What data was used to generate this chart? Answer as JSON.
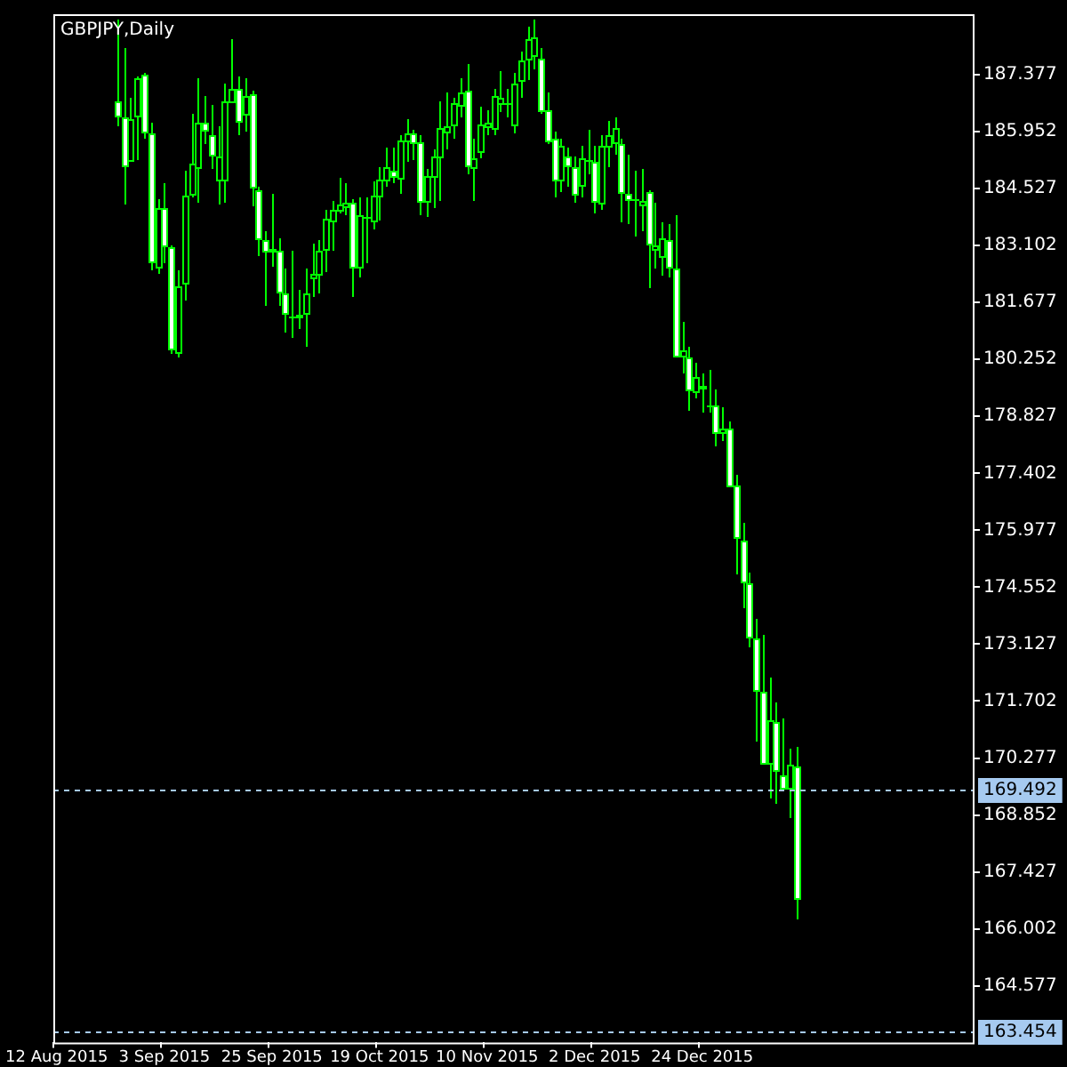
{
  "chart_data": {
    "type": "candlestick",
    "title": "GBPJPY,Daily",
    "color": "#00ff00",
    "categories": [
      "12 Aug 2015",
      null,
      null,
      null,
      null,
      null,
      null,
      null,
      null,
      null,
      null,
      null,
      null,
      null,
      null,
      null,
      "3 Sep 2015",
      null,
      null,
      null,
      null,
      null,
      null,
      null,
      null,
      null,
      null,
      null,
      null,
      null,
      null,
      null,
      "25 Sep 2015",
      null,
      null,
      null,
      null,
      null,
      null,
      null,
      null,
      null,
      null,
      null,
      null,
      null,
      null,
      null,
      "19 Oct 2015",
      null,
      null,
      null,
      null,
      null,
      null,
      null,
      null,
      null,
      null,
      null,
      null,
      null,
      null,
      null,
      "10 Nov 2015",
      null,
      null,
      null,
      null,
      null,
      null,
      null,
      null,
      null,
      null,
      null,
      null,
      null,
      null,
      null,
      "2 Dec 2015",
      null,
      null,
      null,
      null,
      null,
      null,
      null,
      null,
      null,
      null,
      null,
      null,
      null,
      null,
      null,
      "24 Dec 2015",
      null,
      null,
      null,
      null,
      null,
      null,
      null,
      null,
      null,
      null,
      null,
      null,
      null,
      null,
      null,
      null,
      null,
      null,
      null,
      null,
      null,
      null,
      null,
      null,
      null,
      null,
      null,
      null,
      null,
      null,
      null,
      null,
      null,
      null,
      null,
      null,
      null,
      null,
      null,
      null
    ],
    "ohlc": [
      null,
      null,
      null,
      null,
      null,
      null,
      null,
      null,
      null,
      [
        186.71,
        188.75,
        186.09,
        186.31
      ],
      [
        186.31,
        188.04,
        184.14,
        185.07
      ],
      [
        185.2,
        186.8,
        185.2,
        186.27
      ],
      [
        186.31,
        187.33,
        185.25,
        187.29
      ],
      [
        187.38,
        187.42,
        185.78,
        185.91
      ],
      [
        185.91,
        186.18,
        182.5,
        182.67
      ],
      [
        182.54,
        184.27,
        182.41,
        184.05
      ],
      [
        184.05,
        184.67,
        182.67,
        183.07
      ],
      [
        183.07,
        183.12,
        180.41,
        180.5
      ],
      [
        180.41,
        182.5,
        180.32,
        182.1
      ],
      [
        182.14,
        184.98,
        181.74,
        184.36
      ],
      [
        184.36,
        186.4,
        184.31,
        185.16
      ],
      [
        185.03,
        187.29,
        184.18,
        186.18
      ],
      [
        186.18,
        186.84,
        185.65,
        185.96
      ],
      [
        185.87,
        186.62,
        185.03,
        185.34
      ],
      [
        184.71,
        186.09,
        184.14,
        185.34
      ],
      [
        184.71,
        187.15,
        184.18,
        186.71
      ],
      [
        186.67,
        188.26,
        186.67,
        187.02
      ],
      [
        187.02,
        187.33,
        185.87,
        186.18
      ],
      [
        186.36,
        187.29,
        185.96,
        186.84
      ],
      [
        186.89,
        186.98,
        184.09,
        184.54
      ],
      [
        184.49,
        184.58,
        182.85,
        183.25
      ],
      [
        183.25,
        183.47,
        181.57,
        182.94
      ],
      [
        183.03,
        184.4,
        182.59,
        182.94
      ],
      [
        182.99,
        183.3,
        181.57,
        181.92
      ],
      [
        181.92,
        182.54,
        180.94,
        181.39
      ],
      [
        181.34,
        182.99,
        180.77,
        181.3
      ],
      [
        181.3,
        182.01,
        181.03,
        181.39
      ],
      [
        181.39,
        182.54,
        180.59,
        181.92
      ],
      [
        182.28,
        183.16,
        181.83,
        182.41
      ],
      [
        182.36,
        183.25,
        181.92,
        182.99
      ],
      [
        182.99,
        184.0,
        182.45,
        183.79
      ],
      [
        183.7,
        184.23,
        182.99,
        184.0
      ],
      [
        183.96,
        184.8,
        183.92,
        184.14
      ],
      [
        184.05,
        184.67,
        183.87,
        184.18
      ],
      [
        184.18,
        184.27,
        181.83,
        182.54
      ],
      [
        182.54,
        184.31,
        182.32,
        183.87
      ],
      [
        183.83,
        184.31,
        182.67,
        183.79
      ],
      [
        183.7,
        184.71,
        183.52,
        184.36
      ],
      [
        184.31,
        185.07,
        183.74,
        184.76
      ],
      [
        184.71,
        185.56,
        184.58,
        185.07
      ],
      [
        184.98,
        185.56,
        184.67,
        184.8
      ],
      [
        184.76,
        185.87,
        184.4,
        185.74
      ],
      [
        185.69,
        186.27,
        185.2,
        185.91
      ],
      [
        185.91,
        186.0,
        185.25,
        185.65
      ],
      [
        185.69,
        185.87,
        183.87,
        184.18
      ],
      [
        184.18,
        185.03,
        183.83,
        184.85
      ],
      [
        184.8,
        185.51,
        184.05,
        185.34
      ],
      [
        185.29,
        186.71,
        184.23,
        186.05
      ],
      [
        185.91,
        186.93,
        185.51,
        186.09
      ],
      [
        186.09,
        186.8,
        185.78,
        186.67
      ],
      [
        186.58,
        187.29,
        186.31,
        186.93
      ],
      [
        186.98,
        187.64,
        184.89,
        185.07
      ],
      [
        185.03,
        185.78,
        184.23,
        185.29
      ],
      [
        185.42,
        186.58,
        185.29,
        186.14
      ],
      [
        186.05,
        186.49,
        185.87,
        186.18
      ],
      [
        186.0,
        187.02,
        185.87,
        186.84
      ],
      [
        186.62,
        187.47,
        186.45,
        186.8
      ],
      [
        186.67,
        187.02,
        186.31,
        186.62
      ],
      [
        186.09,
        187.42,
        185.91,
        187.15
      ],
      [
        187.2,
        187.95,
        186.8,
        187.73
      ],
      [
        187.73,
        188.57,
        187.24,
        188.26
      ],
      [
        187.82,
        188.75,
        187.51,
        188.31
      ],
      [
        187.78,
        188.04,
        186.4,
        186.45
      ],
      [
        186.49,
        186.93,
        185.65,
        185.69
      ],
      [
        185.78,
        185.96,
        184.31,
        184.71
      ],
      [
        184.71,
        185.78,
        184.45,
        185.6
      ],
      [
        185.34,
        185.56,
        184.58,
        185.07
      ],
      [
        185.07,
        185.34,
        184.18,
        184.36
      ],
      [
        184.58,
        185.6,
        184.31,
        185.29
      ],
      [
        185.25,
        186.0,
        184.89,
        185.2
      ],
      [
        185.2,
        185.6,
        183.92,
        184.18
      ],
      [
        184.14,
        185.87,
        184.0,
        185.6
      ],
      [
        185.56,
        186.22,
        185.07,
        185.87
      ],
      [
        185.65,
        186.31,
        185.38,
        186.05
      ],
      [
        185.65,
        185.78,
        183.7,
        184.4
      ],
      [
        184.4,
        185.38,
        183.65,
        184.23
      ],
      [
        184.27,
        184.98,
        183.34,
        184.23
      ],
      [
        184.09,
        185.03,
        183.47,
        184.23
      ],
      [
        184.45,
        184.49,
        182.05,
        183.12
      ],
      [
        182.99,
        184.18,
        182.54,
        183.12
      ],
      [
        182.81,
        183.7,
        182.36,
        183.3
      ],
      [
        183.25,
        183.65,
        182.32,
        182.54
      ],
      [
        182.54,
        183.87,
        180.28,
        180.32
      ],
      [
        180.32,
        181.21,
        179.88,
        180.5
      ],
      [
        180.28,
        180.59,
        178.95,
        179.44
      ],
      [
        179.39,
        180.15,
        179.26,
        179.79
      ],
      [
        179.48,
        179.92,
        178.9,
        179.61
      ],
      [
        179.08,
        180.01,
        178.9,
        179.04
      ],
      [
        179.08,
        179.52,
        178.06,
        178.37
      ],
      [
        178.37,
        179.04,
        178.19,
        178.5
      ],
      [
        178.5,
        178.68,
        177.04,
        177.04
      ],
      [
        177.09,
        177.35,
        174.87,
        175.75
      ],
      [
        175.71,
        176.15,
        174.02,
        174.64
      ],
      [
        174.64,
        174.91,
        173.05,
        173.27
      ],
      [
        173.27,
        173.76,
        170.7,
        171.94
      ],
      [
        171.94,
        173.36,
        170.12,
        170.12
      ],
      [
        170.12,
        172.29,
        169.28,
        171.23
      ],
      [
        171.19,
        171.67,
        169.14,
        169.94
      ],
      [
        169.85,
        171.27,
        169.5,
        169.5
      ],
      [
        169.5,
        170.52,
        168.79,
        170.12
      ],
      [
        170.08,
        170.57,
        166.22,
        166.75
      ],
      null,
      null,
      null,
      null,
      null,
      null,
      null,
      null,
      null,
      null,
      null,
      null,
      null,
      null,
      null,
      null,
      null,
      null,
      null,
      null,
      null,
      null,
      null,
      null,
      null,
      null
    ],
    "colors": [
      null,
      null,
      null,
      null,
      null,
      null,
      null,
      null,
      null,
      "#ffffff",
      "#ffffff",
      "#000000",
      "#000000",
      "#ffffff",
      "#ffffff",
      "#000000",
      "#ffffff",
      "#ffffff",
      "#000000",
      "#000000",
      "#000000",
      "#000000",
      "#ffffff",
      "#ffffff",
      "#000000",
      "#000000",
      "#000000",
      "#ffffff",
      "#000000",
      "#ffffff",
      "#ffffff",
      "#ffffff",
      "#ffffff",
      "#ffffff",
      "#ffffff",
      "#ffffff",
      "#000000",
      "#000000",
      "#000000",
      "#000000",
      "#000000",
      "#000000",
      "#000000",
      "#000000",
      "#ffffff",
      "#000000",
      "#ffffff",
      "#000000",
      "#000000",
      "#000000",
      "#ffffff",
      "#000000",
      "#000000",
      "#ffffff",
      "#ffffff",
      "#000000",
      "#000000",
      "#000000",
      "#000000",
      "#000000",
      "#000000",
      "#ffffff",
      "#000000",
      "#000000",
      "#000000",
      "#000000",
      "#000000",
      "#ffffff",
      "#000000",
      "#000000",
      "#000000",
      "#000000",
      "#ffffff",
      "#ffffff",
      "#ffffff",
      "#000000",
      "#ffffff",
      "#ffffff",
      "#000000",
      "#ffffff",
      "#ffffff",
      "#000000",
      "#000000",
      "#000000",
      "#ffffff",
      "#ffffff",
      "#ffffff",
      "#000000",
      "#ffffff",
      "#000000",
      "#000000",
      "#ffffff",
      "#ffffff",
      "#000000",
      "#ffffff",
      "#000000",
      "#000000",
      "#ffffff",
      "#ffffff",
      "#000000",
      "#ffffff",
      "#ffffff",
      "#ffffff",
      "#ffffff",
      "#ffffff",
      "#ffffff",
      "#000000",
      "#ffffff",
      "#ffffff",
      "#000000",
      "#ffffff",
      null,
      null,
      null,
      null,
      null,
      null,
      null,
      null,
      null,
      null,
      null,
      null,
      null,
      null,
      null,
      null,
      null,
      null,
      null,
      null,
      null,
      null,
      null,
      null,
      null,
      null
    ],
    "ylim": [
      163.16,
      188.89
    ],
    "yticks": [
      187.377,
      185.952,
      184.527,
      183.102,
      181.677,
      180.252,
      178.827,
      177.402,
      175.977,
      174.552,
      173.127,
      171.702,
      170.277,
      168.852,
      167.427,
      166.002,
      164.577
    ],
    "ref_lines": [
      {
        "axis": "y",
        "value": 169.492,
        "label": "169.492",
        "color": "#a6caf0",
        "line_style": "dashed"
      },
      {
        "axis": "y",
        "value": 163.454,
        "label": "163.454",
        "color": "#a6caf0",
        "line_style": "dashed"
      }
    ]
  }
}
